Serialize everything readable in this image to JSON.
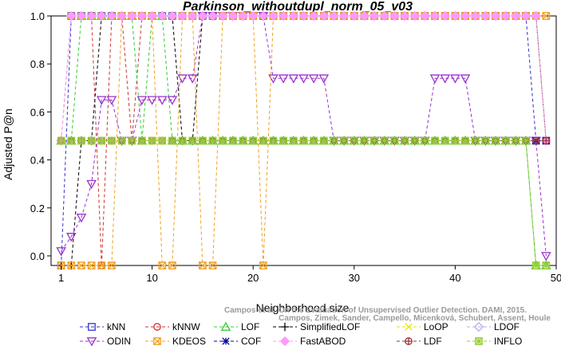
{
  "chart_data": {
    "type": "line",
    "title": "Parkinson_withoutdupl_norm_05_v03",
    "xlabel": "Neighborhood size",
    "ylabel": "Adjusted P@n",
    "xlim": [
      0,
      50
    ],
    "ylim": [
      -0.04,
      1.0
    ],
    "xticks": [
      1,
      10,
      20,
      30,
      40,
      50
    ],
    "yticks": [
      0.0,
      0.2,
      0.4,
      0.6,
      0.8,
      1.0
    ],
    "x": [
      1,
      2,
      3,
      4,
      5,
      6,
      7,
      8,
      9,
      10,
      11,
      12,
      13,
      14,
      15,
      16,
      17,
      18,
      19,
      20,
      21,
      22,
      23,
      24,
      25,
      26,
      27,
      28,
      29,
      30,
      31,
      32,
      33,
      34,
      35,
      36,
      37,
      38,
      39,
      40,
      41,
      42,
      43,
      44,
      45,
      46,
      47,
      48,
      49
    ],
    "legend_position": "bottom",
    "series": [
      {
        "name": "kNN",
        "color": "#3333cc",
        "marker": "square",
        "values": [
          -0.04,
          1.0,
          1.0,
          1.0,
          1.0,
          1.0,
          1.0,
          1.0,
          1.0,
          1.0,
          1.0,
          1.0,
          1.0,
          1.0,
          1.0,
          1.0,
          1.0,
          1.0,
          1.0,
          1.0,
          1.0,
          1.0,
          1.0,
          1.0,
          1.0,
          1.0,
          1.0,
          1.0,
          1.0,
          1.0,
          1.0,
          1.0,
          1.0,
          1.0,
          1.0,
          1.0,
          1.0,
          1.0,
          1.0,
          1.0,
          1.0,
          1.0,
          1.0,
          1.0,
          1.0,
          1.0,
          1.0,
          0.48,
          0.48
        ]
      },
      {
        "name": "kNNW",
        "color": "#cc3333",
        "marker": "circle",
        "values": [
          0.48,
          1.0,
          1.0,
          1.0,
          -0.04,
          1.0,
          1.0,
          0.48,
          1.0,
          1.0,
          1.0,
          1.0,
          1.0,
          1.0,
          1.0,
          1.0,
          1.0,
          1.0,
          1.0,
          1.0,
          1.0,
          1.0,
          1.0,
          1.0,
          1.0,
          1.0,
          1.0,
          1.0,
          1.0,
          1.0,
          1.0,
          1.0,
          1.0,
          1.0,
          1.0,
          1.0,
          1.0,
          1.0,
          1.0,
          1.0,
          1.0,
          1.0,
          1.0,
          1.0,
          1.0,
          1.0,
          1.0,
          1.0,
          0.48
        ]
      },
      {
        "name": "LOF",
        "color": "#33cc33",
        "marker": "triangle-up",
        "values": [
          0.48,
          0.48,
          1.0,
          1.0,
          1.0,
          1.0,
          1.0,
          1.0,
          0.48,
          1.0,
          1.0,
          0.48,
          0.48,
          0.48,
          0.48,
          0.48,
          0.48,
          0.48,
          0.48,
          0.48,
          0.48,
          0.48,
          0.48,
          0.48,
          0.48,
          0.48,
          0.48,
          0.48,
          0.48,
          0.48,
          0.48,
          0.48,
          0.48,
          0.48,
          0.48,
          0.48,
          0.48,
          0.48,
          0.48,
          0.48,
          0.48,
          0.48,
          0.48,
          0.48,
          0.48,
          0.48,
          0.48,
          -0.04,
          -0.04
        ]
      },
      {
        "name": "SimplifiedLOF",
        "color": "#000000",
        "marker": "plus",
        "values": [
          -0.04,
          -0.04,
          0.48,
          0.48,
          1.0,
          1.0,
          1.0,
          1.0,
          1.0,
          1.0,
          1.0,
          1.0,
          0.48,
          0.48,
          1.0,
          1.0,
          1.0,
          1.0,
          1.0,
          1.0,
          1.0,
          1.0,
          1.0,
          1.0,
          1.0,
          1.0,
          1.0,
          1.0,
          1.0,
          1.0,
          1.0,
          1.0,
          1.0,
          1.0,
          1.0,
          1.0,
          1.0,
          1.0,
          1.0,
          1.0,
          1.0,
          1.0,
          1.0,
          1.0,
          1.0,
          1.0,
          1.0,
          1.0,
          0.48
        ]
      },
      {
        "name": "LoOP",
        "color": "#e6e600",
        "marker": "x",
        "values": [
          0.48,
          1.0,
          1.0,
          1.0,
          1.0,
          1.0,
          1.0,
          1.0,
          1.0,
          1.0,
          1.0,
          1.0,
          1.0,
          1.0,
          1.0,
          1.0,
          1.0,
          1.0,
          1.0,
          1.0,
          1.0,
          1.0,
          1.0,
          1.0,
          1.0,
          1.0,
          1.0,
          1.0,
          1.0,
          1.0,
          1.0,
          1.0,
          1.0,
          1.0,
          1.0,
          1.0,
          1.0,
          1.0,
          1.0,
          1.0,
          1.0,
          1.0,
          1.0,
          1.0,
          1.0,
          1.0,
          1.0,
          1.0,
          0.48
        ]
      },
      {
        "name": "LDOF",
        "color": "#b0b0ee",
        "marker": "diamond",
        "values": [
          0.48,
          1.0,
          1.0,
          1.0,
          1.0,
          1.0,
          1.0,
          1.0,
          1.0,
          1.0,
          1.0,
          1.0,
          1.0,
          1.0,
          1.0,
          1.0,
          1.0,
          1.0,
          1.0,
          1.0,
          1.0,
          1.0,
          1.0,
          1.0,
          1.0,
          1.0,
          1.0,
          1.0,
          1.0,
          1.0,
          1.0,
          1.0,
          1.0,
          1.0,
          1.0,
          1.0,
          1.0,
          1.0,
          1.0,
          1.0,
          1.0,
          1.0,
          1.0,
          1.0,
          1.0,
          1.0,
          1.0,
          1.0,
          0.48
        ]
      },
      {
        "name": "ODIN",
        "color": "#9933cc",
        "marker": "triangle-down",
        "values": [
          0.02,
          0.08,
          0.16,
          0.3,
          0.65,
          0.65,
          0.48,
          0.48,
          0.65,
          0.65,
          0.65,
          0.65,
          0.74,
          0.74,
          1.0,
          1.0,
          1.0,
          1.0,
          1.0,
          1.0,
          1.0,
          0.74,
          0.74,
          0.74,
          0.74,
          0.74,
          0.74,
          0.48,
          0.48,
          0.48,
          0.48,
          0.48,
          0.48,
          0.48,
          0.48,
          0.48,
          0.48,
          0.74,
          0.74,
          0.74,
          0.74,
          0.48,
          0.48,
          0.48,
          0.48,
          0.48,
          0.48,
          0.48,
          0.0
        ]
      },
      {
        "name": "KDEOS",
        "color": "#f0a020",
        "marker": "square-cross",
        "values": [
          -0.04,
          -0.04,
          -0.04,
          -0.04,
          -0.04,
          -0.04,
          1.0,
          1.0,
          1.0,
          1.0,
          -0.04,
          -0.04,
          1.0,
          1.0,
          -0.04,
          -0.04,
          1.0,
          1.0,
          1.0,
          1.0,
          -0.04,
          1.0,
          1.0,
          1.0,
          1.0,
          1.0,
          1.0,
          1.0,
          1.0,
          1.0,
          1.0,
          1.0,
          1.0,
          1.0,
          1.0,
          1.0,
          1.0,
          1.0,
          1.0,
          1.0,
          1.0,
          1.0,
          1.0,
          1.0,
          1.0,
          1.0,
          1.0,
          1.0,
          1.0
        ]
      },
      {
        "name": "COF",
        "color": "#000099",
        "marker": "star",
        "values": [
          0.48,
          0.48,
          0.48,
          0.48,
          0.48,
          0.48,
          0.48,
          0.48,
          0.48,
          0.48,
          0.48,
          0.48,
          0.48,
          0.48,
          0.48,
          0.48,
          0.48,
          0.48,
          0.48,
          0.48,
          0.48,
          0.48,
          0.48,
          0.48,
          0.48,
          0.48,
          0.48,
          0.48,
          0.48,
          0.48,
          0.48,
          0.48,
          0.48,
          0.48,
          0.48,
          0.48,
          0.48,
          0.48,
          0.48,
          0.48,
          0.48,
          0.48,
          0.48,
          0.48,
          0.48,
          0.48,
          0.48,
          0.48,
          0.48
        ]
      },
      {
        "name": "FastABOD",
        "color": "#ff99ff",
        "marker": "diamond-filled",
        "values": [
          0.48,
          1.0,
          1.0,
          1.0,
          1.0,
          1.0,
          1.0,
          1.0,
          1.0,
          1.0,
          1.0,
          1.0,
          1.0,
          1.0,
          1.0,
          1.0,
          1.0,
          1.0,
          1.0,
          1.0,
          1.0,
          1.0,
          1.0,
          1.0,
          1.0,
          1.0,
          1.0,
          1.0,
          1.0,
          1.0,
          1.0,
          1.0,
          1.0,
          1.0,
          1.0,
          1.0,
          1.0,
          1.0,
          1.0,
          1.0,
          1.0,
          1.0,
          1.0,
          1.0,
          1.0,
          1.0,
          1.0,
          1.0,
          0.48
        ]
      },
      {
        "name": "LDF",
        "color": "#993333",
        "marker": "circle-plus",
        "values": [
          0.48,
          0.48,
          0.48,
          0.48,
          0.48,
          0.48,
          0.48,
          0.48,
          0.48,
          0.48,
          0.48,
          0.48,
          0.48,
          0.48,
          0.48,
          0.48,
          0.48,
          0.48,
          0.48,
          0.48,
          0.48,
          0.48,
          0.48,
          0.48,
          0.48,
          0.48,
          0.48,
          0.48,
          0.48,
          0.48,
          0.48,
          0.48,
          0.48,
          0.48,
          0.48,
          0.48,
          0.48,
          0.48,
          0.48,
          0.48,
          0.48,
          0.48,
          0.48,
          0.48,
          0.48,
          0.48,
          0.48,
          0.48,
          0.48
        ]
      },
      {
        "name": "INFLO",
        "color": "#99cc33",
        "marker": "star-square",
        "values": [
          0.48,
          0.48,
          0.48,
          0.48,
          0.48,
          0.48,
          0.48,
          0.48,
          0.48,
          0.48,
          0.48,
          0.48,
          0.48,
          0.48,
          0.48,
          0.48,
          0.48,
          0.48,
          0.48,
          0.48,
          0.48,
          0.48,
          0.48,
          0.48,
          0.48,
          0.48,
          0.48,
          0.48,
          0.48,
          0.48,
          0.48,
          0.48,
          0.48,
          0.48,
          0.48,
          0.48,
          0.48,
          0.48,
          0.48,
          0.48,
          0.48,
          0.48,
          0.48,
          0.48,
          0.48,
          0.48,
          0.48,
          -0.04,
          -0.04
        ]
      }
    ],
    "legend_order": [
      "kNN",
      "kNNW",
      "LOF",
      "SimplifiedLOF",
      "LoOP",
      "LDOF",
      "ODIN",
      "KDEOS",
      "COF",
      "FastABOD",
      "LDF",
      "INFLO"
    ],
    "credit_lines": [
      "Campos et al. On the Evaluation of Unsupervised Outlier Detection. DAMI, 2015.",
      "Campos, Zimek, Sander, Campello, Micenková, Schubert, Assent, Houle"
    ]
  }
}
